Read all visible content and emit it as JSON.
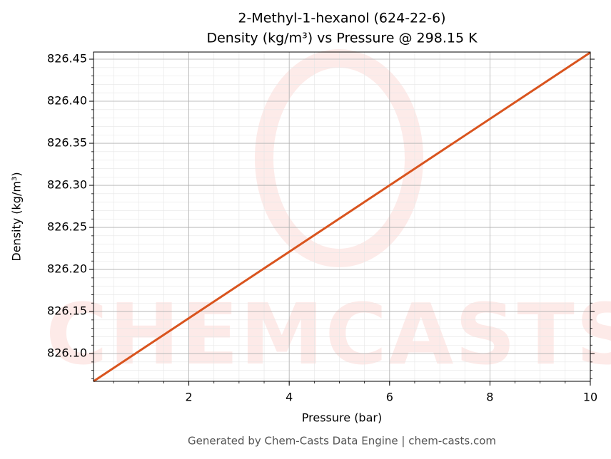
{
  "chart_data": {
    "type": "line",
    "title": "2-Methyl-1-hexanol (624-22-6)",
    "subtitle": "Density (kg/m³) vs Pressure @ 298.15 K",
    "x_label": "Pressure (bar)",
    "y_label": "Density (kg/m³)",
    "footer": "Generated by Chem-Casts Data Engine | chem-casts.com",
    "watermark": "CHEMCASTS",
    "x": [
      0.1,
      10
    ],
    "series": [
      {
        "name": "Density",
        "color": "#d9541e",
        "values": [
          826.067,
          826.458
        ]
      }
    ],
    "xlim": [
      0.1,
      10
    ],
    "ylim": [
      826.067,
      826.4585
    ],
    "xticks": [
      2,
      4,
      6,
      8,
      10
    ],
    "yticks": [
      {
        "value": 826.1,
        "label": "826.10"
      },
      {
        "value": 826.15,
        "label": "826.15"
      },
      {
        "value": 826.2,
        "label": "826.20"
      },
      {
        "value": 826.25,
        "label": "826.25"
      },
      {
        "value": 826.3,
        "label": "826.30"
      },
      {
        "value": 826.35,
        "label": "826.35"
      },
      {
        "value": 826.4,
        "label": "826.40"
      },
      {
        "value": 826.45,
        "label": "826.45"
      }
    ],
    "grid": true
  }
}
